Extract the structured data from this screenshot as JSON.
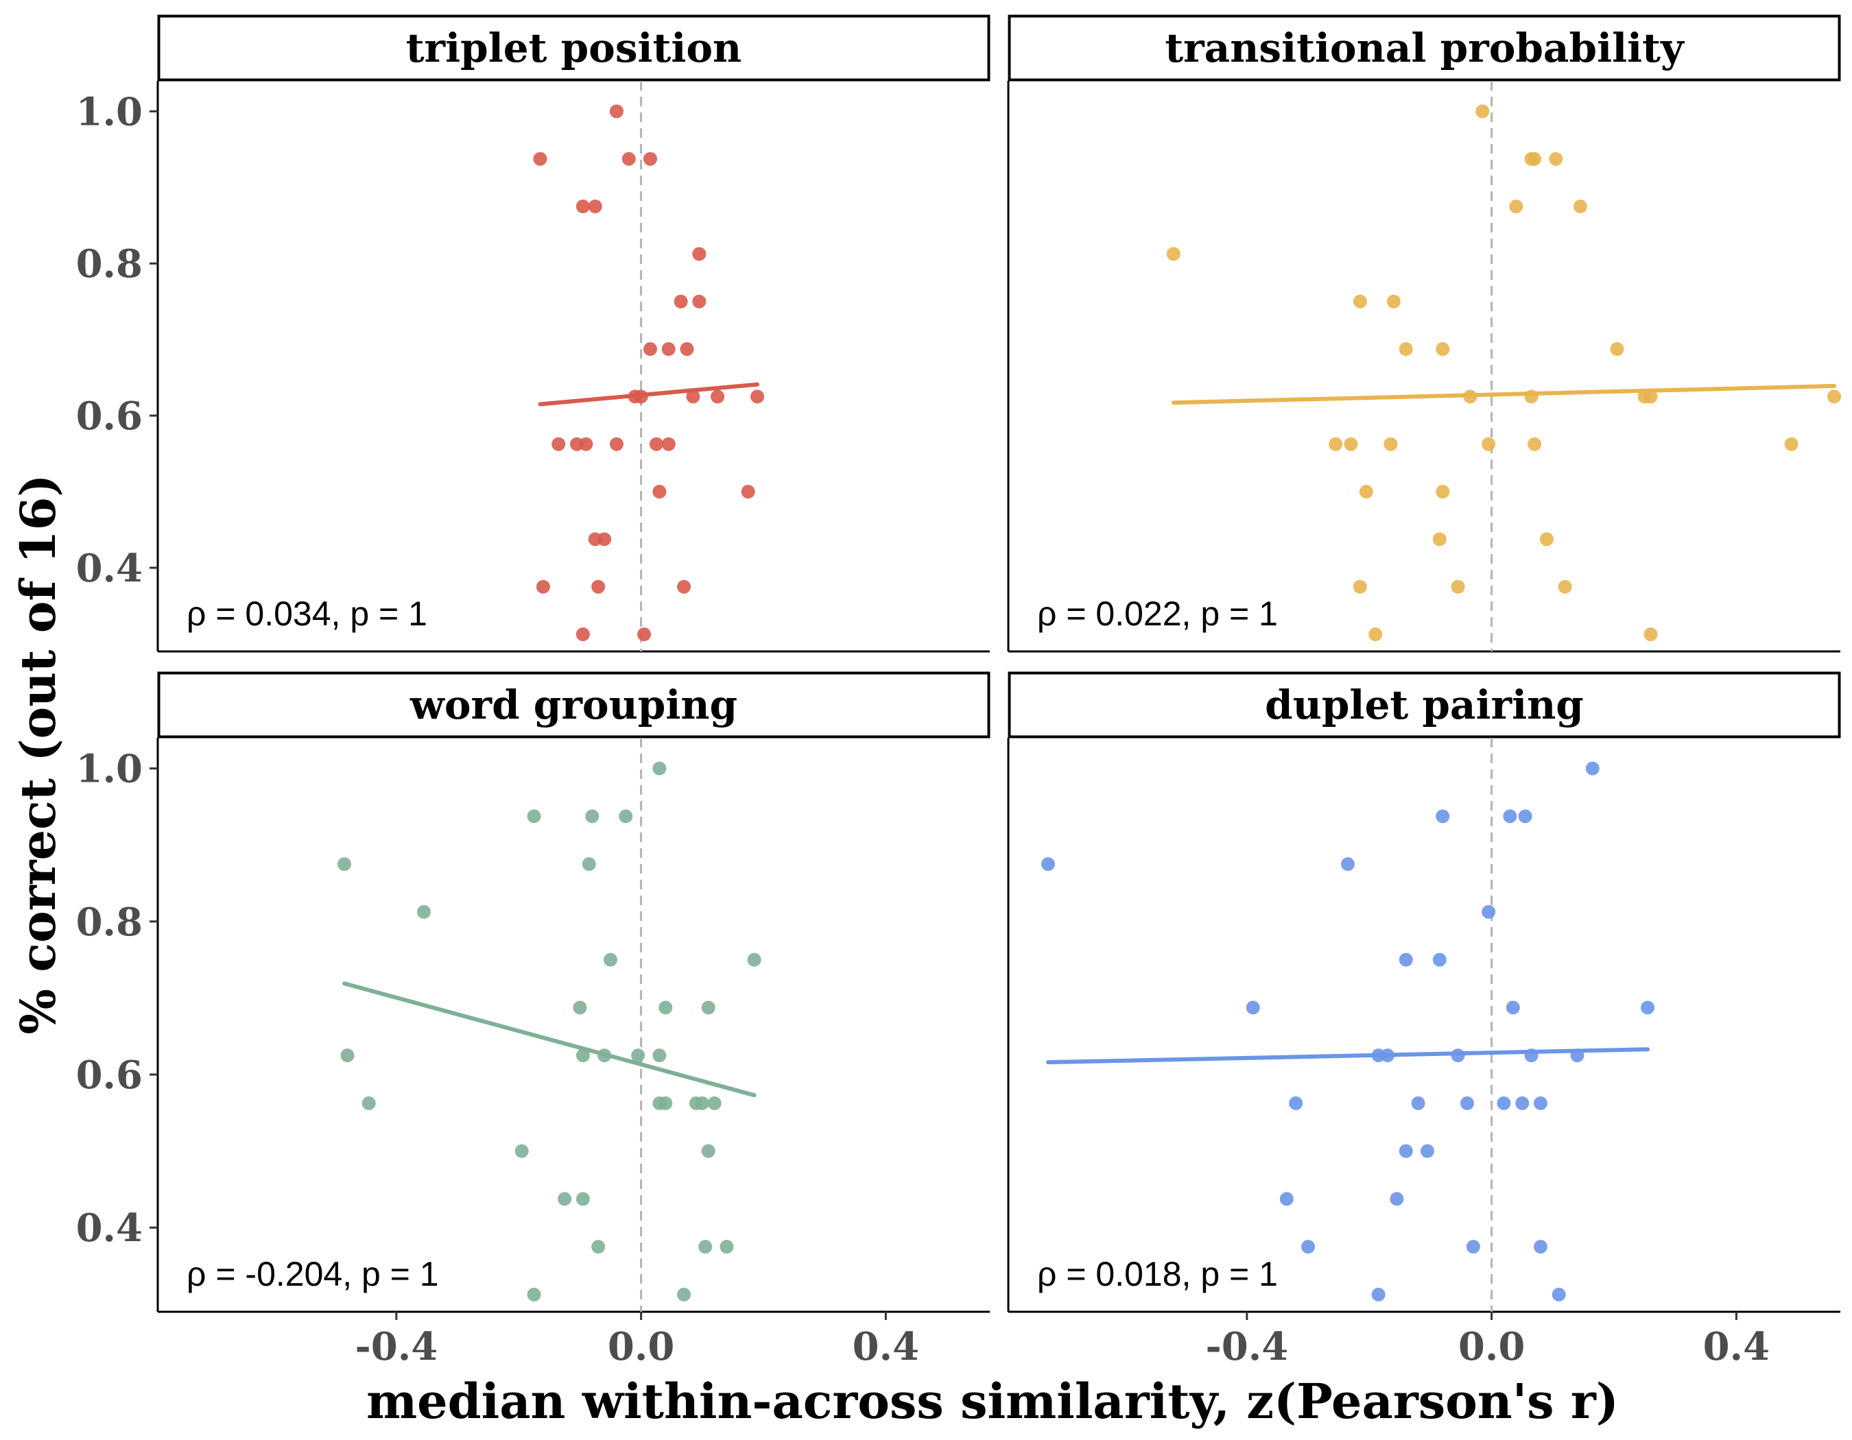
{
  "chart_data": {
    "type": "scatter",
    "xlabel": "median within-across similarity, z(Pearson's r)",
    "ylabel": "% correct (out of 16)",
    "xlim": [
      -0.79,
      0.57
    ],
    "ylim": [
      0.29,
      1.04
    ],
    "x_ticks": [
      -0.4,
      0.0,
      0.4
    ],
    "x_tick_labels": [
      "-0.4",
      "0.0",
      "0.4"
    ],
    "y_ticks": [
      0.4,
      0.6,
      0.8,
      1.0
    ],
    "y_tick_labels": [
      "0.4",
      "0.6",
      "0.8",
      "1.0"
    ],
    "reference_line_x": 0,
    "grid": false,
    "panels": [
      {
        "title": "triplet position",
        "color": "#d95a4c",
        "annotation": "ρ = 0.034, p = 1",
        "fit": {
          "x": [
            -0.165,
            0.19
          ],
          "y": [
            0.615,
            0.641
          ]
        },
        "points": [
          {
            "x": -0.04,
            "y": 1.0
          },
          {
            "x": -0.165,
            "y": 0.9375
          },
          {
            "x": -0.02,
            "y": 0.9375
          },
          {
            "x": 0.015,
            "y": 0.9375
          },
          {
            "x": -0.095,
            "y": 0.875
          },
          {
            "x": -0.075,
            "y": 0.875
          },
          {
            "x": 0.095,
            "y": 0.8125
          },
          {
            "x": 0.065,
            "y": 0.75
          },
          {
            "x": 0.095,
            "y": 0.75
          },
          {
            "x": 0.015,
            "y": 0.6875
          },
          {
            "x": 0.045,
            "y": 0.6875
          },
          {
            "x": 0.075,
            "y": 0.6875
          },
          {
            "x": -0.01,
            "y": 0.625
          },
          {
            "x": 0.0,
            "y": 0.625
          },
          {
            "x": 0.085,
            "y": 0.625
          },
          {
            "x": 0.125,
            "y": 0.625
          },
          {
            "x": 0.19,
            "y": 0.625
          },
          {
            "x": -0.135,
            "y": 0.5625
          },
          {
            "x": -0.105,
            "y": 0.5625
          },
          {
            "x": -0.09,
            "y": 0.5625
          },
          {
            "x": -0.04,
            "y": 0.5625
          },
          {
            "x": 0.025,
            "y": 0.5625
          },
          {
            "x": 0.045,
            "y": 0.5625
          },
          {
            "x": 0.03,
            "y": 0.5
          },
          {
            "x": 0.175,
            "y": 0.5
          },
          {
            "x": -0.075,
            "y": 0.4375
          },
          {
            "x": -0.06,
            "y": 0.4375
          },
          {
            "x": -0.16,
            "y": 0.375
          },
          {
            "x": -0.07,
            "y": 0.375
          },
          {
            "x": 0.07,
            "y": 0.375
          },
          {
            "x": -0.095,
            "y": 0.3125
          },
          {
            "x": 0.005,
            "y": 0.3125
          }
        ]
      },
      {
        "title": "transitional probability",
        "color": "#e8b44e",
        "annotation": "ρ = 0.022, p = 1",
        "fit": {
          "x": [
            -0.52,
            0.56
          ],
          "y": [
            0.617,
            0.639
          ]
        },
        "points": [
          {
            "x": -0.015,
            "y": 1.0
          },
          {
            "x": 0.065,
            "y": 0.9375
          },
          {
            "x": 0.07,
            "y": 0.9375
          },
          {
            "x": 0.105,
            "y": 0.9375
          },
          {
            "x": 0.04,
            "y": 0.875
          },
          {
            "x": 0.145,
            "y": 0.875
          },
          {
            "x": -0.52,
            "y": 0.8125
          },
          {
            "x": -0.215,
            "y": 0.75
          },
          {
            "x": -0.16,
            "y": 0.75
          },
          {
            "x": -0.14,
            "y": 0.6875
          },
          {
            "x": -0.08,
            "y": 0.6875
          },
          {
            "x": 0.205,
            "y": 0.6875
          },
          {
            "x": -0.035,
            "y": 0.625
          },
          {
            "x": 0.065,
            "y": 0.625
          },
          {
            "x": 0.25,
            "y": 0.625
          },
          {
            "x": 0.26,
            "y": 0.625
          },
          {
            "x": 0.56,
            "y": 0.625
          },
          {
            "x": -0.255,
            "y": 0.5625
          },
          {
            "x": -0.23,
            "y": 0.5625
          },
          {
            "x": -0.165,
            "y": 0.5625
          },
          {
            "x": -0.005,
            "y": 0.5625
          },
          {
            "x": 0.07,
            "y": 0.5625
          },
          {
            "x": 0.49,
            "y": 0.5625
          },
          {
            "x": -0.205,
            "y": 0.5
          },
          {
            "x": -0.08,
            "y": 0.5
          },
          {
            "x": -0.085,
            "y": 0.4375
          },
          {
            "x": 0.09,
            "y": 0.4375
          },
          {
            "x": -0.215,
            "y": 0.375
          },
          {
            "x": -0.055,
            "y": 0.375
          },
          {
            "x": 0.12,
            "y": 0.375
          },
          {
            "x": -0.19,
            "y": 0.3125
          },
          {
            "x": 0.26,
            "y": 0.3125
          }
        ]
      },
      {
        "title": "word grouping",
        "color": "#7fb097",
        "annotation": "ρ = -0.204, p = 1",
        "fit": {
          "x": [
            -0.485,
            0.185
          ],
          "y": [
            0.719,
            0.573
          ]
        },
        "points": [
          {
            "x": 0.03,
            "y": 1.0
          },
          {
            "x": -0.175,
            "y": 0.9375
          },
          {
            "x": -0.08,
            "y": 0.9375
          },
          {
            "x": -0.025,
            "y": 0.9375
          },
          {
            "x": -0.485,
            "y": 0.875
          },
          {
            "x": -0.085,
            "y": 0.875
          },
          {
            "x": -0.355,
            "y": 0.8125
          },
          {
            "x": -0.05,
            "y": 0.75
          },
          {
            "x": 0.185,
            "y": 0.75
          },
          {
            "x": -0.1,
            "y": 0.6875
          },
          {
            "x": 0.04,
            "y": 0.6875
          },
          {
            "x": 0.11,
            "y": 0.6875
          },
          {
            "x": -0.48,
            "y": 0.625
          },
          {
            "x": -0.095,
            "y": 0.625
          },
          {
            "x": -0.06,
            "y": 0.625
          },
          {
            "x": -0.005,
            "y": 0.625
          },
          {
            "x": 0.03,
            "y": 0.625
          },
          {
            "x": -0.445,
            "y": 0.5625
          },
          {
            "x": 0.03,
            "y": 0.5625
          },
          {
            "x": 0.04,
            "y": 0.5625
          },
          {
            "x": 0.09,
            "y": 0.5625
          },
          {
            "x": 0.1,
            "y": 0.5625
          },
          {
            "x": 0.12,
            "y": 0.5625
          },
          {
            "x": -0.195,
            "y": 0.5
          },
          {
            "x": 0.11,
            "y": 0.5
          },
          {
            "x": -0.125,
            "y": 0.4375
          },
          {
            "x": -0.095,
            "y": 0.4375
          },
          {
            "x": -0.07,
            "y": 0.375
          },
          {
            "x": 0.105,
            "y": 0.375
          },
          {
            "x": 0.14,
            "y": 0.375
          },
          {
            "x": -0.175,
            "y": 0.3125
          },
          {
            "x": 0.07,
            "y": 0.3125
          }
        ]
      },
      {
        "title": "duplet pairing",
        "color": "#6b95e6",
        "annotation": "ρ = 0.018, p = 1",
        "fit": {
          "x": [
            -0.725,
            0.255
          ],
          "y": [
            0.616,
            0.633
          ]
        },
        "points": [
          {
            "x": 0.165,
            "y": 1.0
          },
          {
            "x": -0.08,
            "y": 0.9375
          },
          {
            "x": 0.03,
            "y": 0.9375
          },
          {
            "x": 0.055,
            "y": 0.9375
          },
          {
            "x": -0.725,
            "y": 0.875
          },
          {
            "x": -0.235,
            "y": 0.875
          },
          {
            "x": -0.005,
            "y": 0.8125
          },
          {
            "x": -0.14,
            "y": 0.75
          },
          {
            "x": -0.085,
            "y": 0.75
          },
          {
            "x": -0.39,
            "y": 0.6875
          },
          {
            "x": 0.035,
            "y": 0.6875
          },
          {
            "x": 0.255,
            "y": 0.6875
          },
          {
            "x": -0.185,
            "y": 0.625
          },
          {
            "x": -0.17,
            "y": 0.625
          },
          {
            "x": -0.055,
            "y": 0.625
          },
          {
            "x": 0.065,
            "y": 0.625
          },
          {
            "x": 0.14,
            "y": 0.625
          },
          {
            "x": -0.32,
            "y": 0.5625
          },
          {
            "x": -0.12,
            "y": 0.5625
          },
          {
            "x": -0.04,
            "y": 0.5625
          },
          {
            "x": 0.02,
            "y": 0.5625
          },
          {
            "x": 0.05,
            "y": 0.5625
          },
          {
            "x": 0.08,
            "y": 0.5625
          },
          {
            "x": -0.14,
            "y": 0.5
          },
          {
            "x": -0.105,
            "y": 0.5
          },
          {
            "x": -0.335,
            "y": 0.4375
          },
          {
            "x": -0.155,
            "y": 0.4375
          },
          {
            "x": -0.3,
            "y": 0.375
          },
          {
            "x": -0.03,
            "y": 0.375
          },
          {
            "x": 0.08,
            "y": 0.375
          },
          {
            "x": -0.185,
            "y": 0.3125
          },
          {
            "x": 0.11,
            "y": 0.3125
          }
        ]
      }
    ]
  }
}
